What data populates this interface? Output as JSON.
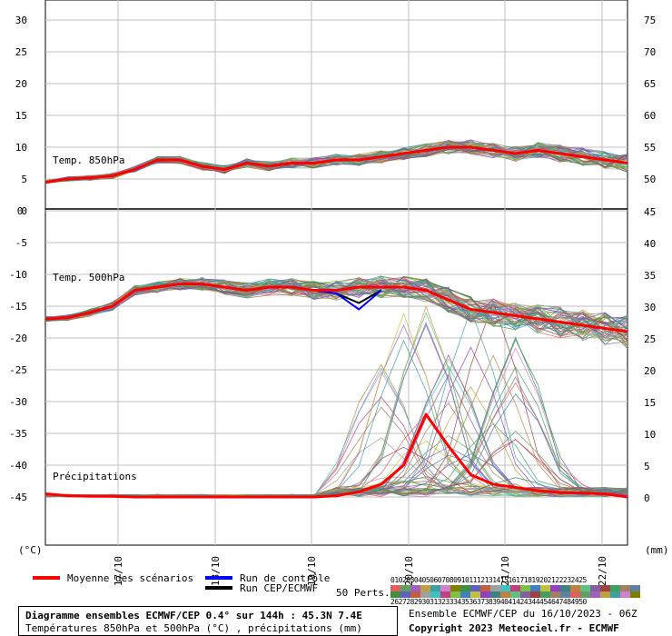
{
  "chart_data": {
    "type": "line",
    "dates": [
      "17/10",
      "18/10",
      "19/10",
      "20/10",
      "21/10",
      "22/10"
    ],
    "panels": [
      {
        "name": "Temp. 850hPa",
        "left_ticks": [
          "30",
          "25",
          "20",
          "15",
          "10",
          "5",
          "0"
        ],
        "right_ticks": [
          "75",
          "70",
          "65",
          "60",
          "55",
          "50"
        ],
        "mean": [
          4.5,
          5.0,
          5.2,
          5.5,
          6.5,
          8.0,
          8.0,
          7.0,
          6.5,
          7.5,
          7.0,
          7.5,
          7.5,
          8.0,
          8.0,
          8.5,
          9.0,
          9.5,
          10.0,
          10.0,
          9.5,
          9.0,
          9.5,
          9.0,
          8.5,
          8.0,
          7.5
        ],
        "control": [
          4.5,
          5.0,
          5.2,
          5.5,
          6.5,
          8.0,
          8.0,
          7.0,
          6.5,
          7.5,
          7.0,
          7.5,
          7.5,
          8.0,
          8.0,
          8.5,
          9.0,
          9.5,
          10.0,
          10.0,
          9.5,
          9.0,
          9.5,
          9.0,
          8.5,
          8.0,
          7.5
        ],
        "deterministic": [
          4.5,
          5.0,
          5.2,
          5.5,
          6.5,
          8.0,
          8.0,
          7.0,
          6.5,
          7.5,
          7.0,
          7.5,
          7.5,
          8.0,
          8.0,
          8.5,
          9.0,
          9.5,
          10.0,
          10.0,
          9.5,
          9.0,
          9.5,
          9.0,
          8.5,
          8.0,
          7.5
        ]
      },
      {
        "name": "Temp. 500hPa",
        "left_ticks": [
          "-5",
          "-10",
          "-15",
          "-20",
          "-25",
          "-30",
          "-35",
          "-40",
          "-45"
        ],
        "right_ticks": [
          "45",
          "40",
          "35",
          "30",
          "25",
          "20",
          "15",
          "10",
          "5",
          "0"
        ],
        "mean": [
          -17.0,
          -16.8,
          -16.0,
          -15.0,
          -12.5,
          -12.0,
          -11.5,
          -11.5,
          -12.0,
          -12.5,
          -12.0,
          -12.0,
          -12.5,
          -12.5,
          -12.0,
          -12.0,
          -12.0,
          -12.5,
          -14.0,
          -15.5,
          -16.0,
          -16.5,
          -17.0,
          -17.5,
          -18.0,
          -18.5,
          -19.0
        ],
        "control": [
          -17.0,
          -16.8,
          -16.0,
          -15.0,
          -12.5,
          -12.0,
          -11.5,
          -11.5,
          -12.0,
          -12.5,
          -12.0,
          -12.0,
          -12.5,
          -13.0,
          -15.5,
          -12.5
        ],
        "deterministic": [
          -17.0,
          -16.8,
          -16.0,
          -15.0,
          -12.5,
          -12.0,
          -11.5,
          -11.5,
          -12.0,
          -12.5,
          -12.0,
          -12.0,
          -12.5,
          -13.0,
          -14.5,
          -12.5
        ]
      },
      {
        "name": "Précipitations",
        "mean": [
          0.5,
          0.2,
          0.1,
          0.1,
          0.0,
          0.0,
          0.0,
          0.0,
          0.0,
          0.0,
          0.0,
          0.0,
          0.0,
          0.2,
          0.8,
          2.0,
          5.0,
          13.0,
          8.0,
          3.5,
          2.0,
          1.5,
          1.0,
          0.7,
          0.6,
          0.5,
          0.0
        ]
      }
    ],
    "left_unit": "(°C)",
    "right_unit": "(mm)"
  },
  "legend": {
    "mean_label": "Moyenne des scénarios",
    "control_label": "Run de contrôle",
    "deterministic_label": "Run CEP/ECMWF",
    "perts_label": "50 Perts.",
    "pert_numbers_row1": "01020304050607080910111213141516171819202122232425",
    "pert_numbers_row2": "26272829303132333435363738394041424344454647484950"
  },
  "colors": {
    "mean": "#ff0000",
    "control": "#0000ff",
    "deterministic": "#000000",
    "grid": "#c0c0c0"
  },
  "footer": {
    "title": "Diagramme ensembles ECMWF/CEP 0.4° sur 144h : 45.3N 7.4E",
    "subtitle": "Températures 850hPa et 500hPa (°C) , précipitations (mm)",
    "run_info": "Ensemble ECMWF/CEP du 16/10/2023 - 06Z",
    "copyright": "Copyright 2023 Meteociel.fr - ECMWF"
  }
}
